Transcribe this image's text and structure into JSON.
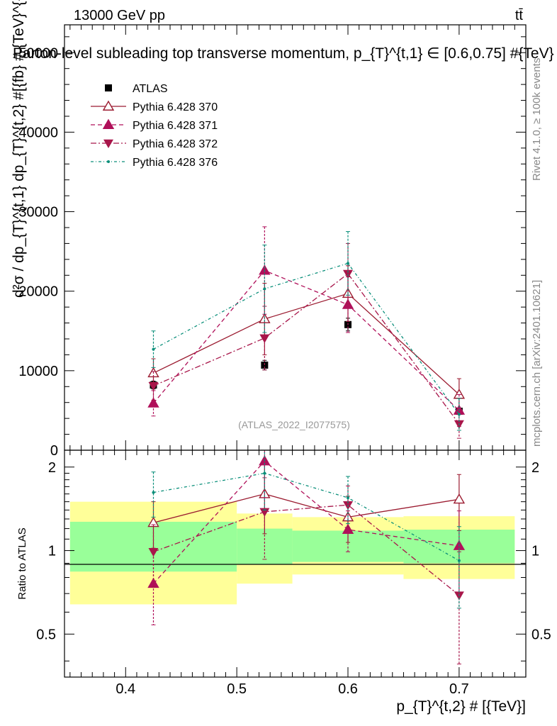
{
  "header": {
    "energy_label": "13000 GeV pp",
    "process_label": "tt̄",
    "rivet_label": "Rivet 4.1.0, ≥ 100k events",
    "mcplots_label": "mcplots.cern.ch [arXiv:2401.10621]",
    "analysis_id": "(ATLAS_2022_I2077575)"
  },
  "colors": {
    "data": "#000000",
    "p370": "#9b1b30",
    "p371": "#b0105a",
    "p372": "#a8164a",
    "p376": "#0a8f7a",
    "band_inner": "#99ff99",
    "band_outer": "#ffff99"
  },
  "chart_data": [
    {
      "type": "scatter",
      "panel": "main",
      "title": "Parton-level subleading top transverse momentum, p_{T}^{t,1} ∈ [0.6,0.75] #{TeV}",
      "ylabel": "d²σ / dp_{T}^{t,1} dp_{T}^{t,2} #[{fb} # {TeV}^{-2}]",
      "xlabel": "p_{T}^{t,2} # [{TeV}]",
      "xlim": [
        0.345,
        0.76
      ],
      "ylim": [
        0,
        53500
      ],
      "y_ticks": [
        0,
        10000,
        20000,
        30000,
        40000,
        50000
      ],
      "y_tick_labels": [
        "0",
        "10000",
        "20000",
        "30000",
        "40000",
        "50000"
      ],
      "legend_position": "top-left",
      "x": [
        0.425,
        0.525,
        0.6,
        0.7
      ],
      "series": [
        {
          "name": "ATLAS",
          "key": "data",
          "marker": "square",
          "dash": "none",
          "values": [
            8200,
            10700,
            15800,
            4900
          ],
          "err_lo": [
            500,
            600,
            800,
            400
          ],
          "err_hi": [
            500,
            600,
            800,
            400
          ]
        },
        {
          "name": "Pythia 6.428 370",
          "key": "p370",
          "marker": "triangle-up-open",
          "dash": "solid",
          "values": [
            9700,
            16500,
            19700,
            7000
          ],
          "err_lo": [
            1800,
            4500,
            3500,
            2000
          ],
          "err_hi": [
            1800,
            4500,
            3500,
            2000
          ]
        },
        {
          "name": "Pythia 6.428 371",
          "key": "p371",
          "marker": "triangle-up",
          "dash": "6,4",
          "values": [
            5900,
            22600,
            18300,
            5000
          ],
          "err_lo": [
            1600,
            5500,
            3500,
            2000
          ],
          "err_hi": [
            1600,
            5500,
            3500,
            2000
          ]
        },
        {
          "name": "Pythia 6.428 372",
          "key": "p372",
          "marker": "triangle-down",
          "dash": "8,3,2,3",
          "values": [
            8100,
            14100,
            22200,
            3300
          ],
          "err_lo": [
            1800,
            4000,
            3800,
            1800
          ],
          "err_hi": [
            1800,
            4000,
            3800,
            1800
          ]
        },
        {
          "name": "Pythia 6.428 376",
          "key": "p376",
          "marker": "dot",
          "dash": "4,3,1,3",
          "values": [
            12700,
            20300,
            23500,
            4500
          ],
          "err_lo": [
            2300,
            5500,
            4000,
            2000
          ],
          "err_hi": [
            2300,
            5500,
            4000,
            2000
          ]
        }
      ]
    },
    {
      "type": "scatter",
      "panel": "ratio",
      "ylabel": "Ratio to ATLAS",
      "xlim": [
        0.345,
        0.76
      ],
      "ylim": [
        0.35,
        2.3
      ],
      "y_ticks": [
        0.5,
        1,
        2
      ],
      "y_tick_labels": [
        "0.5",
        "1",
        "2"
      ],
      "x_ticks": [
        0.4,
        0.5,
        0.6,
        0.7
      ],
      "x_tick_labels": [
        "0.4",
        "0.5",
        "0.6",
        "0.7"
      ],
      "x": [
        0.425,
        0.525,
        0.6,
        0.7
      ],
      "bands": [
        {
          "x0": 0.35,
          "x1": 0.5,
          "inner": [
            0.84,
            1.27
          ],
          "outer": [
            0.64,
            1.5
          ]
        },
        {
          "x0": 0.5,
          "x1": 0.55,
          "inner": [
            0.89,
            1.2
          ],
          "outer": [
            0.76,
            1.36
          ]
        },
        {
          "x0": 0.55,
          "x1": 0.65,
          "inner": [
            0.91,
            1.18
          ],
          "outer": [
            0.82,
            1.32
          ]
        },
        {
          "x0": 0.65,
          "x1": 0.75,
          "inner": [
            0.9,
            1.19
          ],
          "outer": [
            0.79,
            1.33
          ]
        }
      ],
      "series": [
        {
          "name": "Pythia 6.428 370",
          "key": "p370",
          "marker": "triangle-up-open",
          "dash": "solid",
          "values": [
            1.26,
            1.6,
            1.32,
            1.53
          ],
          "err_lo": [
            0.24,
            0.45,
            0.25,
            0.35
          ],
          "err_hi": [
            0.24,
            0.45,
            0.25,
            0.35
          ]
        },
        {
          "name": "Pythia 6.428 371",
          "key": "p371",
          "marker": "triangle-up",
          "dash": "6,4",
          "values": [
            0.76,
            2.1,
            1.19,
            1.04
          ],
          "err_lo": [
            0.22,
            0.55,
            0.2,
            0.35
          ],
          "err_hi": [
            0.22,
            0.55,
            0.2,
            0.35
          ]
        },
        {
          "name": "Pythia 6.428 372",
          "key": "p372",
          "marker": "triangle-down",
          "dash": "8,3,2,3",
          "values": [
            0.99,
            1.38,
            1.46,
            0.69
          ],
          "err_lo": [
            0.25,
            0.45,
            0.25,
            0.3
          ],
          "err_hi": [
            0.25,
            0.45,
            0.25,
            0.3
          ]
        },
        {
          "name": "Pythia 6.428 376",
          "key": "p376",
          "marker": "dot",
          "dash": "4,3,1,3",
          "values": [
            1.62,
            1.9,
            1.55,
            0.92
          ],
          "err_lo": [
            0.3,
            0.5,
            0.3,
            0.3
          ],
          "err_hi": [
            0.3,
            0.5,
            0.3,
            0.3
          ]
        }
      ]
    }
  ]
}
